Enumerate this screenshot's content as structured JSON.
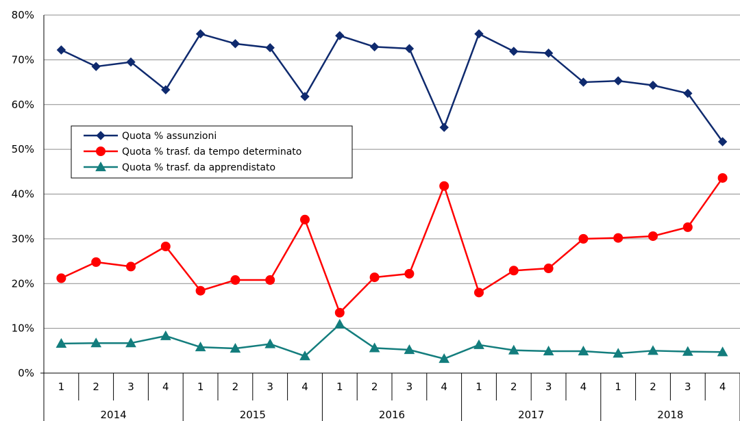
{
  "chart_data": {
    "type": "line",
    "title": "",
    "xlabel": "",
    "ylabel": "",
    "ylim": [
      0,
      80
    ],
    "y_ticks": [
      "0%",
      "10%",
      "20%",
      "30%",
      "40%",
      "50%",
      "60%",
      "70%",
      "80%"
    ],
    "grid": "horizontal",
    "legend_position": "left-middle",
    "categories": [
      "1",
      "2",
      "3",
      "4",
      "1",
      "2",
      "3",
      "4",
      "1",
      "2",
      "3",
      "4",
      "1",
      "2",
      "3",
      "4",
      "1",
      "2",
      "3",
      "4"
    ],
    "years": [
      "2014",
      "2015",
      "2016",
      "2017",
      "2018"
    ],
    "series": [
      {
        "name": "Quota % assunzioni",
        "color": "#0f2a6e",
        "marker": "diamond",
        "values": [
          72.2,
          68.5,
          69.5,
          63.3,
          75.8,
          73.6,
          72.7,
          61.8,
          75.4,
          72.9,
          72.5,
          54.9,
          75.8,
          71.9,
          71.5,
          65.0,
          65.3,
          64.3,
          62.5,
          51.7
        ]
      },
      {
        "name": "Quota % trasf. da tempo determinato",
        "color": "#ff0000",
        "marker": "circle",
        "values": [
          21.2,
          24.8,
          23.8,
          28.3,
          18.4,
          20.8,
          20.8,
          34.3,
          13.5,
          21.4,
          22.2,
          41.8,
          18.0,
          22.9,
          23.4,
          30.0,
          30.2,
          30.6,
          32.6,
          43.6
        ]
      },
      {
        "name": "Quota % trasf. da apprendistato",
        "color": "#137d7d",
        "marker": "triangle",
        "values": [
          6.6,
          6.7,
          6.7,
          8.3,
          5.8,
          5.5,
          6.5,
          3.8,
          10.9,
          5.6,
          5.2,
          3.2,
          6.3,
          5.1,
          4.9,
          4.9,
          4.4,
          5.0,
          4.8,
          4.7
        ]
      }
    ]
  }
}
